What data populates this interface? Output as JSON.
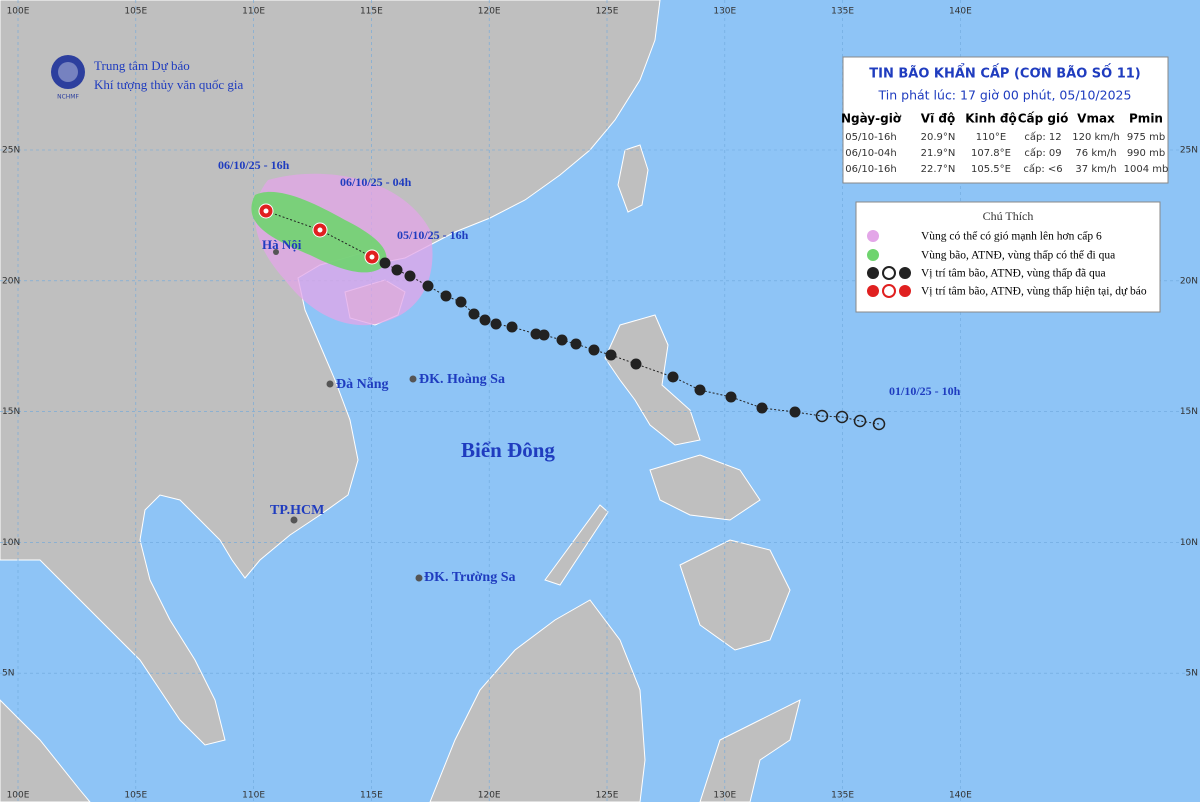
{
  "header": {
    "org_line1": "Trung tâm Dự báo",
    "org_line2": "Khí tượng thủy văn quốc gia",
    "logo_text": "NCHMF"
  },
  "axes": {
    "longitudes": [
      "100E",
      "105E",
      "110E",
      "115E",
      "120E",
      "125E",
      "130E",
      "135E",
      "140E"
    ],
    "latitudes": [
      "25N",
      "20N",
      "15N",
      "10N",
      "5N"
    ]
  },
  "bulletin": {
    "title": "TIN BÃO KHẨN CẤP (CƠN BÃO SỐ 11)",
    "issued": "Tin phát lúc: 17 giờ 00 phút, 05/10/2025",
    "columns": [
      "Ngày-giờ",
      "Vĩ độ",
      "Kinh độ",
      "Cấp gió",
      "Vmax",
      "Pmin"
    ],
    "rows": [
      [
        "05/10-16h",
        "20.9°N",
        "110°E",
        "cấp: 12",
        "120 km/h",
        "975 mb"
      ],
      [
        "06/10-04h",
        "21.9°N",
        "107.8°E",
        "cấp: 09",
        "76 km/h",
        "990 mb"
      ],
      [
        "06/10-16h",
        "22.7°N",
        "105.5°E",
        "cấp: <6",
        "37 km/h",
        "1004 mb"
      ]
    ]
  },
  "legend": {
    "title": "Chú Thích",
    "items": [
      "Vùng có thể có gió mạnh lên hơn cấp 6",
      "Vùng bão, ATNĐ, vùng thấp có thể đi qua",
      "Vị trí tâm bão, ATNĐ, vùng thấp đã qua",
      "Vị trí tâm bão, ATNĐ, vùng thấp hiện tại, dự báo"
    ]
  },
  "places": [
    "Hà Nội",
    "Đà Nẵng",
    "ĐK. Hoàng Sa",
    "TP.HCM",
    "ĐK. Trường Sa",
    "Biển Đông"
  ],
  "track_labels": [
    "06/10/25 - 16h",
    "06/10/25 - 04h",
    "05/10/25 - 16h",
    "01/10/25 - 10h"
  ]
}
